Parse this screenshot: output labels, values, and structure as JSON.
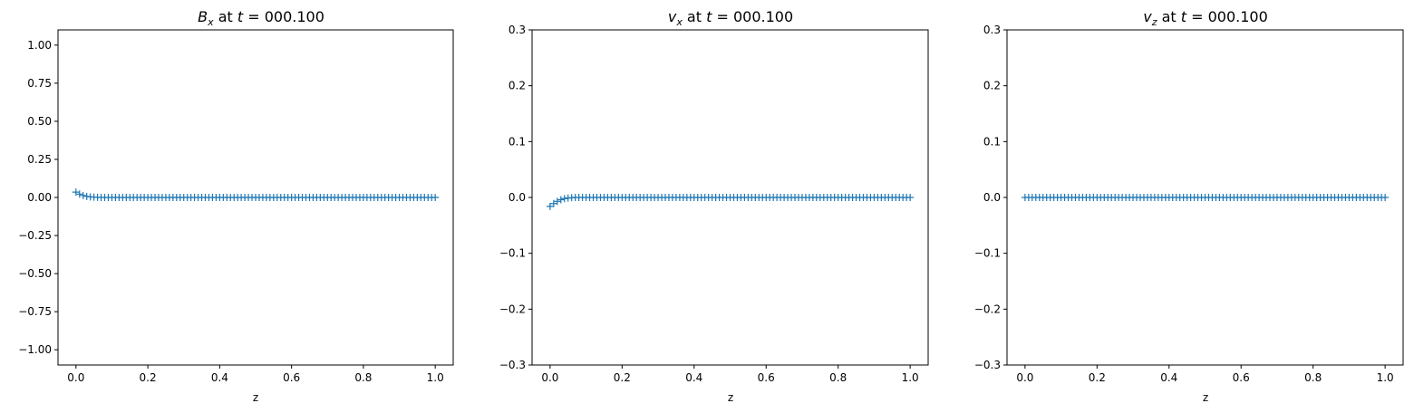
{
  "colors": {
    "marker": "#1f77b4",
    "axes": "#000000",
    "background": "#ffffff"
  },
  "chart_data": [
    {
      "type": "scatter",
      "marker": "+",
      "title_main": "B",
      "title_sub": "x",
      "title_rest": " at ",
      "title_var": "t",
      "title_value": " = 000.100",
      "xlabel": "z",
      "ylabel": "",
      "xlim": [
        -0.05,
        1.05
      ],
      "ylim": [
        -1.1,
        1.1
      ],
      "xticks": [
        0.0,
        0.2,
        0.4,
        0.6,
        0.8,
        1.0
      ],
      "xtick_labels": [
        "0.0",
        "0.2",
        "0.4",
        "0.6",
        "0.8",
        "1.0"
      ],
      "yticks": [
        -1.0,
        -0.75,
        -0.5,
        -0.25,
        0.0,
        0.25,
        0.5,
        0.75,
        1.0
      ],
      "ytick_labels": [
        "−1.00",
        "−0.75",
        "−0.50",
        "−0.25",
        "0.00",
        "0.25",
        "0.50",
        "0.75",
        "1.00"
      ],
      "grid": false,
      "series": [
        {
          "x": [
            0.0,
            0.01,
            0.02,
            0.03,
            0.04,
            0.05,
            0.06,
            0.07,
            0.08,
            0.09,
            0.1,
            0.11,
            0.12,
            0.13,
            0.14,
            0.15,
            0.16,
            0.17,
            0.18,
            0.19,
            0.2,
            0.21,
            0.22,
            0.23,
            0.24,
            0.25,
            0.26,
            0.27,
            0.28,
            0.29,
            0.3,
            0.31,
            0.32,
            0.33,
            0.34,
            0.35,
            0.36,
            0.37,
            0.38,
            0.39,
            0.4,
            0.41,
            0.42,
            0.43,
            0.44,
            0.45,
            0.46,
            0.47,
            0.48,
            0.49,
            0.5,
            0.51,
            0.52,
            0.53,
            0.54,
            0.55,
            0.56,
            0.57,
            0.58,
            0.59,
            0.6,
            0.61,
            0.62,
            0.63,
            0.64,
            0.65,
            0.66,
            0.67,
            0.68,
            0.69,
            0.7,
            0.71,
            0.72,
            0.73,
            0.74,
            0.75,
            0.76,
            0.77,
            0.78,
            0.79,
            0.8,
            0.81,
            0.82,
            0.83,
            0.84,
            0.85,
            0.86,
            0.87,
            0.88,
            0.89,
            0.9,
            0.91,
            0.92,
            0.93,
            0.94,
            0.95,
            0.96,
            0.97,
            0.98,
            0.99,
            1.0
          ],
          "y": [
            0.035,
            0.022,
            0.013,
            0.007,
            0.004,
            0.002,
            0.001,
            0.0,
            0.0,
            0.0,
            0.0,
            0.0,
            0.0,
            0.0,
            0.0,
            0.0,
            0.0,
            0.0,
            0.0,
            0.0,
            0.0,
            0.0,
            0.0,
            0.0,
            0.0,
            0.0,
            0.0,
            0.0,
            0.0,
            0.0,
            0.0,
            0.0,
            0.0,
            0.0,
            0.0,
            0.0,
            0.0,
            0.0,
            0.0,
            0.0,
            0.0,
            0.0,
            0.0,
            0.0,
            0.0,
            0.0,
            0.0,
            0.0,
            0.0,
            0.0,
            0.0,
            0.0,
            0.0,
            0.0,
            0.0,
            0.0,
            0.0,
            0.0,
            0.0,
            0.0,
            0.0,
            0.0,
            0.0,
            0.0,
            0.0,
            0.0,
            0.0,
            0.0,
            0.0,
            0.0,
            0.0,
            0.0,
            0.0,
            0.0,
            0.0,
            0.0,
            0.0,
            0.0,
            0.0,
            0.0,
            0.0,
            0.0,
            0.0,
            0.0,
            0.0,
            0.0,
            0.0,
            0.0,
            0.0,
            0.0,
            0.0,
            0.0,
            0.0,
            0.0,
            0.0,
            0.0,
            0.0,
            0.0,
            0.0,
            0.0,
            0.0
          ]
        }
      ]
    },
    {
      "type": "scatter",
      "marker": "+",
      "title_main": "v",
      "title_sub": "x",
      "title_rest": " at ",
      "title_var": "t",
      "title_value": " = 000.100",
      "xlabel": "z",
      "ylabel": "",
      "xlim": [
        -0.05,
        1.05
      ],
      "ylim": [
        -0.3,
        0.3
      ],
      "xticks": [
        0.0,
        0.2,
        0.4,
        0.6,
        0.8,
        1.0
      ],
      "xtick_labels": [
        "0.0",
        "0.2",
        "0.4",
        "0.6",
        "0.8",
        "1.0"
      ],
      "yticks": [
        -0.3,
        -0.2,
        -0.1,
        0.0,
        0.1,
        0.2,
        0.3
      ],
      "ytick_labels": [
        "−0.3",
        "−0.2",
        "−0.1",
        "0.0",
        "0.1",
        "0.2",
        "0.3"
      ],
      "grid": false,
      "series": [
        {
          "x": [
            0.0,
            0.01,
            0.02,
            0.03,
            0.04,
            0.05,
            0.06,
            0.07,
            0.08,
            0.09,
            0.1,
            0.11,
            0.12,
            0.13,
            0.14,
            0.15,
            0.16,
            0.17,
            0.18,
            0.19,
            0.2,
            0.21,
            0.22,
            0.23,
            0.24,
            0.25,
            0.26,
            0.27,
            0.28,
            0.29,
            0.3,
            0.31,
            0.32,
            0.33,
            0.34,
            0.35,
            0.36,
            0.37,
            0.38,
            0.39,
            0.4,
            0.41,
            0.42,
            0.43,
            0.44,
            0.45,
            0.46,
            0.47,
            0.48,
            0.49,
            0.5,
            0.51,
            0.52,
            0.53,
            0.54,
            0.55,
            0.56,
            0.57,
            0.58,
            0.59,
            0.6,
            0.61,
            0.62,
            0.63,
            0.64,
            0.65,
            0.66,
            0.67,
            0.68,
            0.69,
            0.7,
            0.71,
            0.72,
            0.73,
            0.74,
            0.75,
            0.76,
            0.77,
            0.78,
            0.79,
            0.8,
            0.81,
            0.82,
            0.83,
            0.84,
            0.85,
            0.86,
            0.87,
            0.88,
            0.89,
            0.9,
            0.91,
            0.92,
            0.93,
            0.94,
            0.95,
            0.96,
            0.97,
            0.98,
            0.99,
            1.0
          ],
          "y": [
            -0.016,
            -0.011,
            -0.007,
            -0.004,
            -0.002,
            -0.001,
            -0.0005,
            0.0,
            0.0,
            0.0,
            0.0,
            0.0,
            0.0,
            0.0,
            0.0,
            0.0,
            0.0,
            0.0,
            0.0,
            0.0,
            0.0,
            0.0,
            0.0,
            0.0,
            0.0,
            0.0,
            0.0,
            0.0,
            0.0,
            0.0,
            0.0,
            0.0,
            0.0,
            0.0,
            0.0,
            0.0,
            0.0,
            0.0,
            0.0,
            0.0,
            0.0,
            0.0,
            0.0,
            0.0,
            0.0,
            0.0,
            0.0,
            0.0,
            0.0,
            0.0,
            0.0,
            0.0,
            0.0,
            0.0,
            0.0,
            0.0,
            0.0,
            0.0,
            0.0,
            0.0,
            0.0,
            0.0,
            0.0,
            0.0,
            0.0,
            0.0,
            0.0,
            0.0,
            0.0,
            0.0,
            0.0,
            0.0,
            0.0,
            0.0,
            0.0,
            0.0,
            0.0,
            0.0,
            0.0,
            0.0,
            0.0,
            0.0,
            0.0,
            0.0,
            0.0,
            0.0,
            0.0,
            0.0,
            0.0,
            0.0,
            0.0,
            0.0,
            0.0,
            0.0,
            0.0,
            0.0,
            0.0,
            0.0,
            0.0,
            0.0,
            0.0
          ]
        }
      ]
    },
    {
      "type": "scatter",
      "marker": "+",
      "title_main": "v",
      "title_sub": "z",
      "title_rest": " at ",
      "title_var": "t",
      "title_value": " = 000.100",
      "xlabel": "z",
      "ylabel": "",
      "xlim": [
        -0.05,
        1.05
      ],
      "ylim": [
        -0.3,
        0.3
      ],
      "xticks": [
        0.0,
        0.2,
        0.4,
        0.6,
        0.8,
        1.0
      ],
      "xtick_labels": [
        "0.0",
        "0.2",
        "0.4",
        "0.6",
        "0.8",
        "1.0"
      ],
      "yticks": [
        -0.3,
        -0.2,
        -0.1,
        0.0,
        0.1,
        0.2,
        0.3
      ],
      "ytick_labels": [
        "−0.3",
        "−0.2",
        "−0.1",
        "0.0",
        "0.1",
        "0.2",
        "0.3"
      ],
      "grid": false,
      "series": [
        {
          "x": [
            0.0,
            0.01,
            0.02,
            0.03,
            0.04,
            0.05,
            0.06,
            0.07,
            0.08,
            0.09,
            0.1,
            0.11,
            0.12,
            0.13,
            0.14,
            0.15,
            0.16,
            0.17,
            0.18,
            0.19,
            0.2,
            0.21,
            0.22,
            0.23,
            0.24,
            0.25,
            0.26,
            0.27,
            0.28,
            0.29,
            0.3,
            0.31,
            0.32,
            0.33,
            0.34,
            0.35,
            0.36,
            0.37,
            0.38,
            0.39,
            0.4,
            0.41,
            0.42,
            0.43,
            0.44,
            0.45,
            0.46,
            0.47,
            0.48,
            0.49,
            0.5,
            0.51,
            0.52,
            0.53,
            0.54,
            0.55,
            0.56,
            0.57,
            0.58,
            0.59,
            0.6,
            0.61,
            0.62,
            0.63,
            0.64,
            0.65,
            0.66,
            0.67,
            0.68,
            0.69,
            0.7,
            0.71,
            0.72,
            0.73,
            0.74,
            0.75,
            0.76,
            0.77,
            0.78,
            0.79,
            0.8,
            0.81,
            0.82,
            0.83,
            0.84,
            0.85,
            0.86,
            0.87,
            0.88,
            0.89,
            0.9,
            0.91,
            0.92,
            0.93,
            0.94,
            0.95,
            0.96,
            0.97,
            0.98,
            0.99,
            1.0
          ],
          "y": [
            0.0,
            0.0,
            0.0,
            0.0,
            0.0,
            0.0,
            0.0,
            0.0,
            0.0,
            0.0,
            0.0,
            0.0,
            0.0,
            0.0,
            0.0,
            0.0,
            0.0,
            0.0,
            0.0,
            0.0,
            0.0,
            0.0,
            0.0,
            0.0,
            0.0,
            0.0,
            0.0,
            0.0,
            0.0,
            0.0,
            0.0,
            0.0,
            0.0,
            0.0,
            0.0,
            0.0,
            0.0,
            0.0,
            0.0,
            0.0,
            0.0,
            0.0,
            0.0,
            0.0,
            0.0,
            0.0,
            0.0,
            0.0,
            0.0,
            0.0,
            0.0,
            0.0,
            0.0,
            0.0,
            0.0,
            0.0,
            0.0,
            0.0,
            0.0,
            0.0,
            0.0,
            0.0,
            0.0,
            0.0,
            0.0,
            0.0,
            0.0,
            0.0,
            0.0,
            0.0,
            0.0,
            0.0,
            0.0,
            0.0,
            0.0,
            0.0,
            0.0,
            0.0,
            0.0,
            0.0,
            0.0,
            0.0,
            0.0,
            0.0,
            0.0,
            0.0,
            0.0,
            0.0,
            0.0,
            0.0,
            0.0,
            0.0,
            0.0,
            0.0,
            0.0,
            0.0,
            0.0,
            0.0,
            0.0,
            0.0,
            0.0
          ]
        }
      ]
    }
  ]
}
